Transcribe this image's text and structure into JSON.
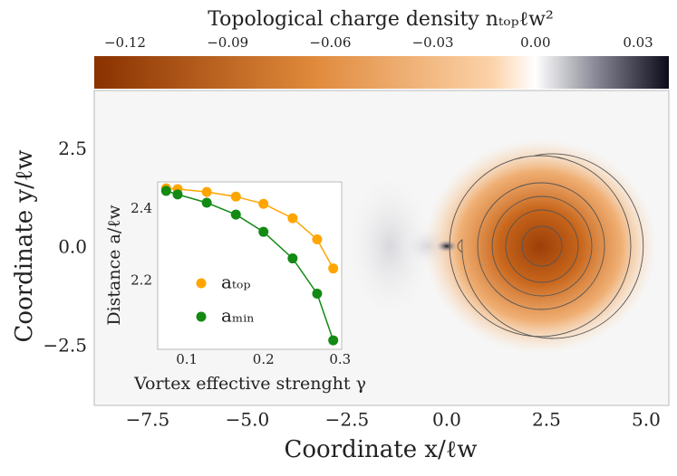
{
  "chart_data": [
    {
      "type": "heatmap",
      "title": "Topological charge density nₜₒₚℓw²",
      "x_label": "Coordinate x/ℓw",
      "y_label": "Coordinate y/ℓw",
      "xlim": [
        -8.84,
        5.57
      ],
      "ylim": [
        -4.0,
        4.0
      ],
      "xticks": [
        {
          "value": -7.5,
          "label": "−7.5"
        },
        {
          "value": -5,
          "label": "−5.0"
        },
        {
          "value": -2.5,
          "label": "−2.5"
        },
        {
          "value": 0,
          "label": "0.0"
        },
        2.5,
        {
          "value": 5,
          "label": "5.0"
        }
      ],
      "yticks": [
        {
          "value": -2.5,
          "label": "−2.5"
        },
        {
          "value": 0,
          "label": "0.0"
        },
        2.5
      ],
      "clim": [
        -0.129,
        0.039
      ],
      "cticks": [
        {
          "value": -0.12,
          "label": "−0.12"
        },
        {
          "value": -0.09,
          "label": "−0.09"
        },
        {
          "value": -0.06,
          "label": "−0.06"
        },
        {
          "value": -0.03,
          "label": "−0.03"
        },
        {
          "value": 0,
          "label": "0.00"
        },
        0.03
      ],
      "colormap": [
        "#8a3200",
        "#e08a3c",
        "#fcd2a8",
        "#ffffff",
        "#7d7d8c",
        "#0b0b1a"
      ]
    },
    {
      "type": "scatter",
      "x_label": "Vortex effective strenght γ",
      "y_label": "Distance a/ℓw",
      "xlim": [
        0.062,
        0.302
      ],
      "ylim": [
        2.01,
        2.476
      ],
      "xticks": [
        0.1,
        0.2,
        0.3
      ],
      "yticks": [
        2.2,
        2.4
      ],
      "x": [
        0.073,
        0.088,
        0.126,
        0.164,
        0.2,
        0.238,
        0.27,
        0.291
      ],
      "series": [
        {
          "name": "aₜₒₚ",
          "color": "#ffa500",
          "values": [
            2.458,
            2.456,
            2.448,
            2.435,
            2.415,
            2.375,
            2.316,
            2.235
          ]
        },
        {
          "name": "aₘᵢₙ",
          "color": "#138a13",
          "values": [
            2.451,
            2.441,
            2.418,
            2.385,
            2.337,
            2.263,
            2.165,
            2.035
          ]
        }
      ],
      "legend": "lower left"
    }
  ]
}
